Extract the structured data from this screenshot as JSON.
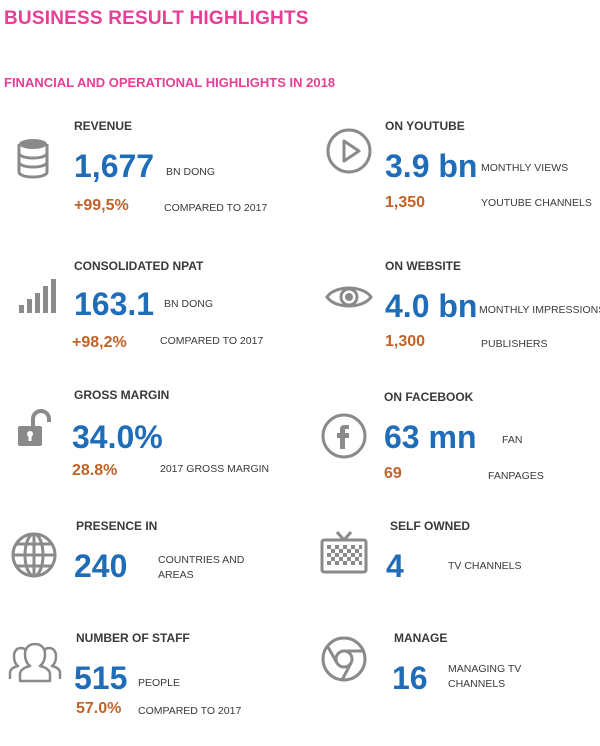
{
  "header": {
    "title": "BUSINESS RESULT HIGHLIGHTS",
    "subtitle": "FINANCIAL AND OPERATIONAL HIGHLIGHTS IN 2018"
  },
  "items": {
    "revenue": {
      "label": "REVENUE",
      "value": "1,677",
      "unit": "BN DONG",
      "sub_value": "+99,5%",
      "sub_label": "COMPARED TO 2017",
      "icon": "database-icon"
    },
    "youtube": {
      "label": "ON YOUTUBE",
      "value": "3.9 bn",
      "unit": "MONTHLY VIEWS",
      "sub_value": "1,350",
      "sub_label": "YOUTUBE CHANNELS",
      "icon": "play-icon"
    },
    "npat": {
      "label": "CONSOLIDATED NPAT",
      "value": "163.1",
      "unit": "BN DONG",
      "sub_value": "+98,2%",
      "sub_label": "COMPARED TO 2017",
      "icon": "signal-bars-icon"
    },
    "website": {
      "label": "ON WEBSITE",
      "value": "4.0 bn",
      "unit": "MONTHLY IMPRESSIONS",
      "sub_value": "1,300",
      "sub_label": "PUBLISHERS",
      "icon": "eye-icon"
    },
    "gross_margin": {
      "label": "GROSS MARGIN",
      "value": "34.0%",
      "sub_value": "28.8%",
      "sub_label": "2017 GROSS MARGIN",
      "icon": "unlocked-padlock-icon"
    },
    "facebook": {
      "label": "ON FACEBOOK",
      "value": "63 mn",
      "unit": "FAN",
      "sub_value": "69",
      "sub_label": "FANPAGES",
      "icon": "facebook-icon"
    },
    "presence": {
      "label": "PRESENCE IN",
      "value": "240",
      "unit_line1": "COUNTRIES AND",
      "unit_line2": "AREAS",
      "icon": "globe-icon"
    },
    "self_owned": {
      "label": "SELF OWNED",
      "value": "4",
      "unit": "TV CHANNELS",
      "icon": "tv-icon"
    },
    "staff": {
      "label": "NUMBER OF STAFF",
      "value": "515",
      "unit": "PEOPLE",
      "sub_value": "57.0%",
      "sub_label": "COMPARED TO 2017",
      "icon": "people-icon"
    },
    "manage": {
      "label": "MANAGE",
      "value": "16",
      "unit_line1": "MANAGING TV",
      "unit_line2": "CHANNELS",
      "icon": "chrome-icon"
    }
  },
  "colors": {
    "title": "#e83e96",
    "value": "#1f6db8",
    "sub_value": "#c0632a",
    "icon": "#8a8a8a"
  }
}
